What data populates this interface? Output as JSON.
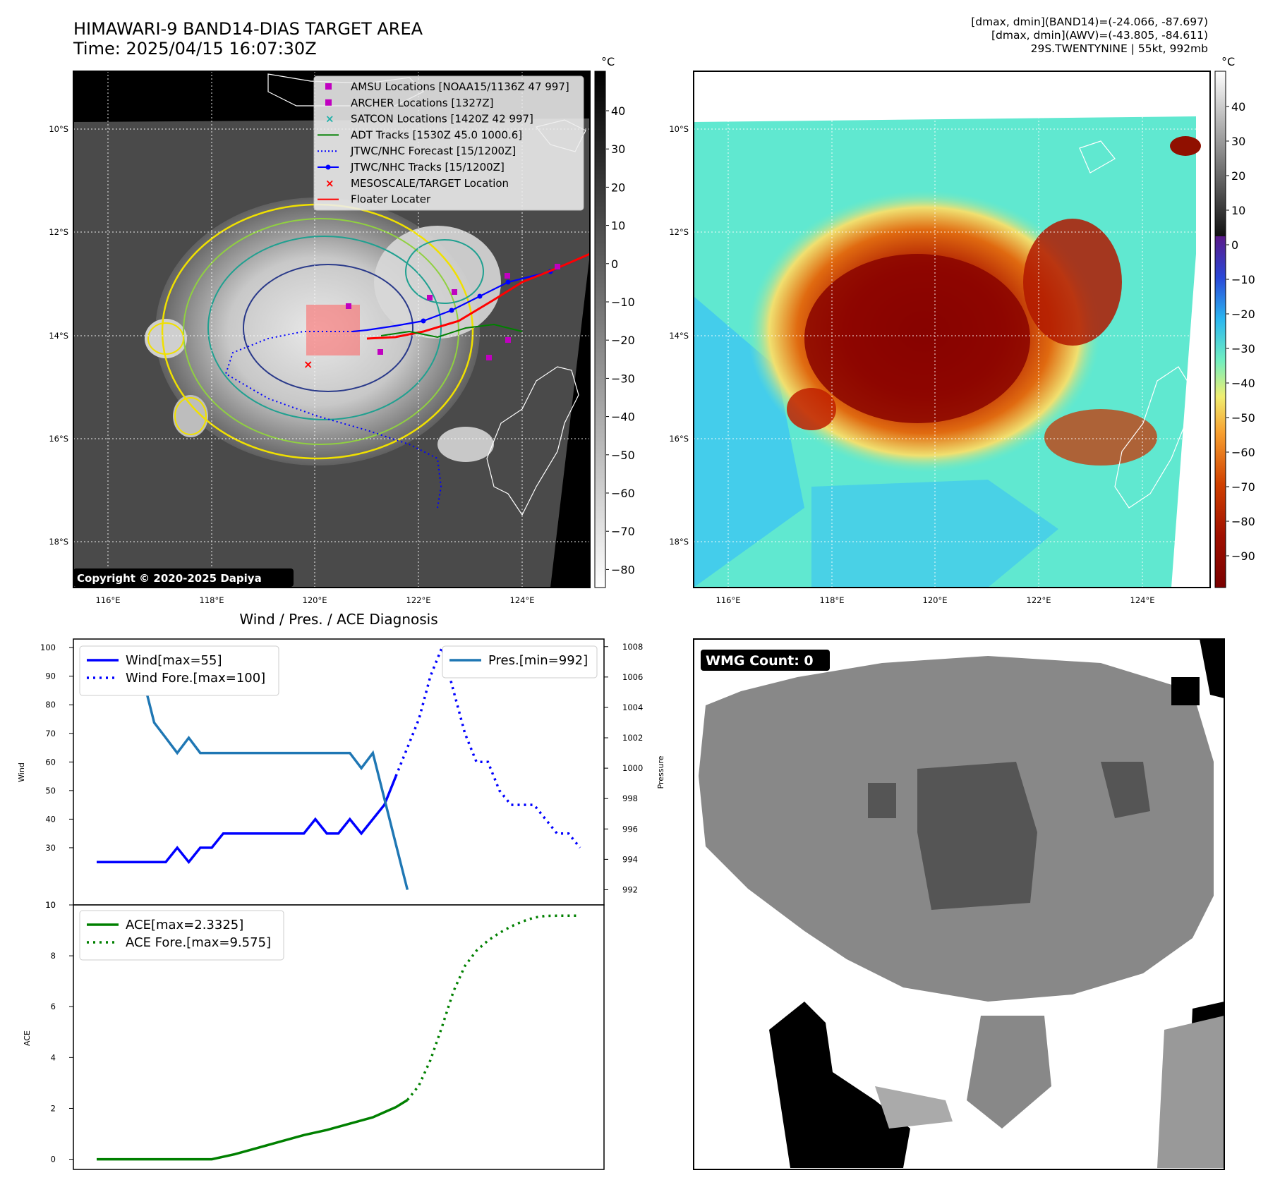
{
  "header": {
    "title_line1": "HIMAWARI-9 BAND14-DIAS TARGET AREA",
    "title_line2": "Time: 2025/04/15 16:07:30Z",
    "info_line1": "[dmax, dmin](BAND14)=(-24.066, -87.697)",
    "info_line2": "[dmax, dmin](AWV)=(-43.805, -84.611)",
    "info_line3": "29S.TWENTYNINE | 55kt, 992mb"
  },
  "maps": {
    "lon_ticks": [
      "116°E",
      "118°E",
      "120°E",
      "122°E",
      "124°E"
    ],
    "lat_ticks": [
      "10°S",
      "12°S",
      "14°S",
      "16°S",
      "18°S"
    ],
    "copyright": "Copyright © 2020-2025 Dapiya",
    "colorbar_unit": "°C",
    "colorbar1_ticks": [
      "40",
      "30",
      "20",
      "10",
      "0",
      "−10",
      "−20",
      "−30",
      "−40",
      "−50",
      "−60",
      "−70",
      "−80"
    ],
    "colorbar2_ticks": [
      "40",
      "30",
      "20",
      "10",
      "0",
      "−10",
      "−20",
      "−30",
      "−40",
      "−50",
      "−60",
      "−70",
      "−80",
      "−90"
    ],
    "legend": [
      {
        "label": "AMSU Locations [NOAA15/1136Z 47 997]",
        "color": "#c000c0",
        "marker": "square"
      },
      {
        "label": "ARCHER Locations [1327Z]",
        "color": "#c000c0",
        "marker": "square"
      },
      {
        "label": "SATCON Locations [1420Z 42 997]",
        "color": "#20b2aa",
        "marker": "x"
      },
      {
        "label": "ADT Tracks [1530Z 45.0 1000.6]",
        "color": "#008000",
        "marker": "line"
      },
      {
        "label": "JTWC/NHC Forecast [15/1200Z]",
        "color": "#0000ff",
        "marker": "dotted"
      },
      {
        "label": "JTWC/NHC Tracks [15/1200Z]",
        "color": "#0000ff",
        "marker": "line-dot"
      },
      {
        "label": "MESOSCALE/TARGET Location",
        "color": "#ff0000",
        "marker": "x"
      },
      {
        "label": "Floater Locater",
        "color": "#ff0000",
        "marker": "line"
      }
    ],
    "wmg_label": "WMG Count: 0"
  },
  "chart_data": [
    {
      "type": "line",
      "title": "Wind / Pres. / ACE Diagnosis",
      "ylabel": "Wind",
      "ylim": [
        10,
        103
      ],
      "yticks": [
        "100",
        "90",
        "80",
        "70",
        "60",
        "50",
        "40",
        "30",
        "10"
      ],
      "ylabel2": "Pressure",
      "ylim2": [
        991,
        1008.5
      ],
      "yticks2": [
        "1008",
        "1006",
        "1004",
        "1002",
        "1000",
        "998",
        "996",
        "994",
        "992"
      ],
      "series": [
        {
          "name": "Wind[max=55]",
          "color": "#0000ff",
          "style": "solid",
          "x": [
            0,
            1,
            2,
            3,
            4,
            5,
            6,
            7,
            8,
            9,
            10,
            11,
            12,
            13,
            14,
            15,
            16,
            17,
            18,
            19,
            20,
            21,
            22,
            23,
            24,
            25,
            26
          ],
          "values": [
            25,
            25,
            25,
            25,
            25,
            25,
            25,
            30,
            25,
            30,
            30,
            35,
            35,
            35,
            35,
            35,
            35,
            35,
            35,
            40,
            35,
            35,
            40,
            35,
            40,
            45,
            55
          ]
        },
        {
          "name": "Wind Fore.[max=100]",
          "color": "#0000ff",
          "style": "dotted",
          "x": [
            26,
            27,
            28,
            29,
            30,
            31,
            32,
            33,
            34,
            35,
            36,
            37,
            38,
            39,
            40,
            41,
            42
          ],
          "values": [
            55,
            65,
            75,
            90,
            100,
            85,
            70,
            60,
            60,
            50,
            45,
            45,
            45,
            40,
            35,
            35,
            30
          ]
        },
        {
          "name": "Pres.[min=992]",
          "color": "#1f77b4",
          "style": "solid",
          "axis": "right",
          "x": [
            0,
            1,
            2,
            3,
            4,
            5,
            6,
            7,
            8,
            9,
            10,
            11,
            12,
            13,
            14,
            15,
            16,
            17,
            18,
            19,
            20,
            21,
            22,
            23,
            24,
            25,
            26,
            27
          ],
          "values": [
            1008,
            1007,
            1007,
            1006,
            1006,
            1003,
            1002,
            1001,
            1002,
            1001,
            1001,
            1001,
            1001,
            1001,
            1001,
            1001,
            1001,
            1001,
            1001,
            1001,
            1001,
            1001,
            1001,
            1000,
            1001,
            998,
            995,
            992
          ]
        }
      ],
      "legend_left": [
        "Wind[max=55]",
        "Wind Fore.[max=100]"
      ],
      "legend_right": [
        "Pres.[min=992]"
      ]
    },
    {
      "type": "line",
      "ylabel": "ACE",
      "ylim": [
        -0.4,
        10
      ],
      "yticks": [
        "10",
        "8",
        "6",
        "4",
        "2",
        "0"
      ],
      "series": [
        {
          "name": "ACE[max=2.3325]",
          "color": "#008000",
          "style": "solid",
          "x": [
            0,
            2,
            4,
            6,
            8,
            10,
            12,
            14,
            16,
            18,
            20,
            22,
            24,
            25,
            26,
            27
          ],
          "values": [
            0,
            0,
            0,
            0,
            0,
            0,
            0.2,
            0.45,
            0.7,
            0.95,
            1.15,
            1.4,
            1.65,
            1.85,
            2.05,
            2.33
          ]
        },
        {
          "name": "ACE Fore.[max=9.575]",
          "color": "#008000",
          "style": "dotted",
          "x": [
            27,
            28,
            29,
            30,
            31,
            32,
            33,
            34,
            35,
            36,
            37,
            38,
            39,
            40,
            41,
            42
          ],
          "values": [
            2.33,
            2.9,
            3.9,
            5.2,
            6.6,
            7.6,
            8.2,
            8.6,
            8.9,
            9.15,
            9.35,
            9.5,
            9.57,
            9.575,
            9.575,
            9.575
          ]
        }
      ],
      "legend": [
        "ACE[max=2.3325]",
        "ACE Fore.[max=9.575]"
      ]
    }
  ]
}
